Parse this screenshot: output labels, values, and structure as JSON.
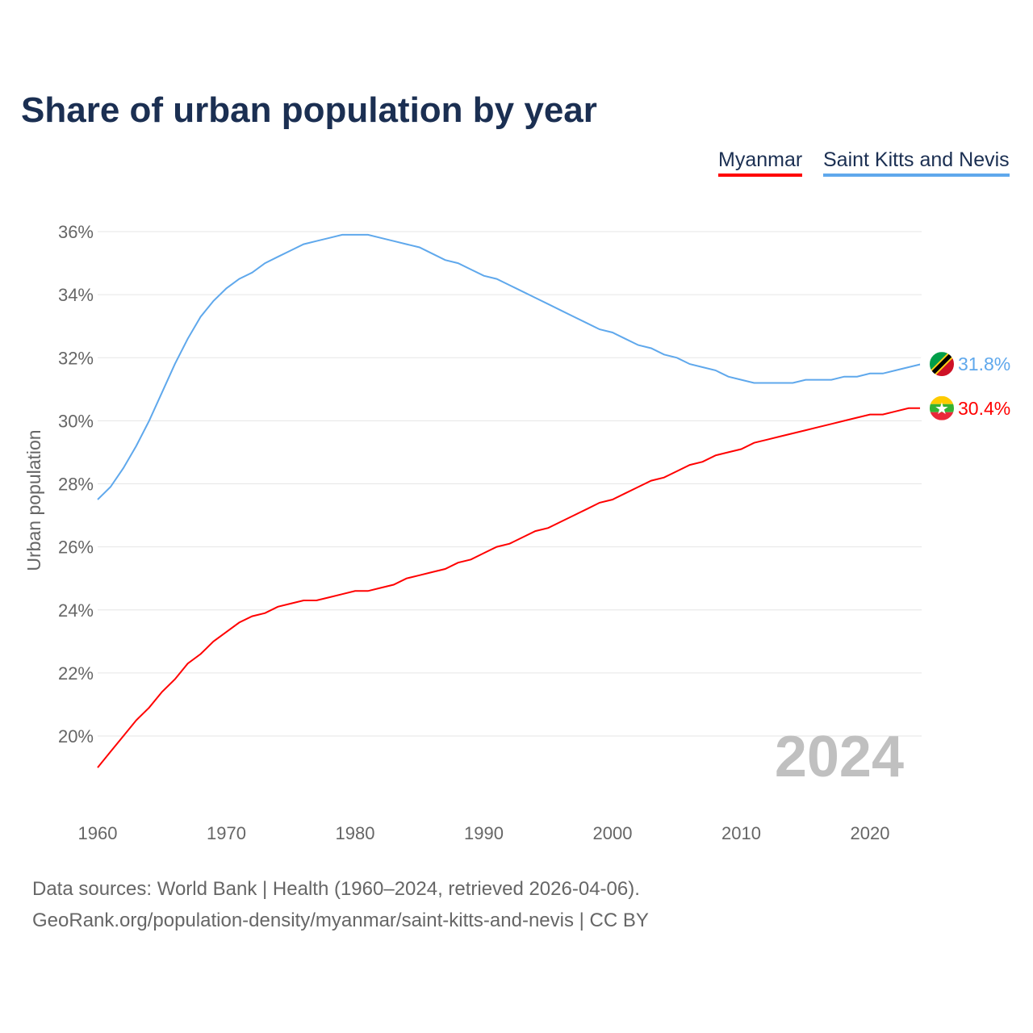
{
  "chart_data": {
    "type": "line",
    "title": "Share of urban population by year",
    "ylabel": "Urban population",
    "xlabel": "",
    "ylim": [
      18.2,
      36.5
    ],
    "xlim": [
      1960,
      2024
    ],
    "yticks": [
      20,
      22,
      24,
      26,
      28,
      30,
      32,
      34,
      36
    ],
    "ytick_labels": [
      "20%",
      "22%",
      "24%",
      "26%",
      "28%",
      "30%",
      "32%",
      "34%",
      "36%"
    ],
    "xticks": [
      1960,
      1970,
      1980,
      1990,
      2000,
      2010,
      2020
    ],
    "xtick_labels": [
      "1960",
      "1970",
      "1980",
      "1990",
      "2000",
      "2010",
      "2020"
    ],
    "grid": true,
    "legend_position": "top-right",
    "year_watermark": "2024",
    "x": [
      1960,
      1961,
      1962,
      1963,
      1964,
      1965,
      1966,
      1967,
      1968,
      1969,
      1970,
      1971,
      1972,
      1973,
      1974,
      1975,
      1976,
      1977,
      1978,
      1979,
      1980,
      1981,
      1982,
      1983,
      1984,
      1985,
      1986,
      1987,
      1988,
      1989,
      1990,
      1991,
      1992,
      1993,
      1994,
      1995,
      1996,
      1997,
      1998,
      1999,
      2000,
      2001,
      2002,
      2003,
      2004,
      2005,
      2006,
      2007,
      2008,
      2009,
      2010,
      2011,
      2012,
      2013,
      2014,
      2015,
      2016,
      2017,
      2018,
      2019,
      2020,
      2021,
      2022,
      2023,
      2024
    ],
    "series": [
      {
        "name": "Myanmar",
        "color": "#ff0000",
        "end_label": "30.4%",
        "values": [
          19.0,
          19.5,
          20.0,
          20.5,
          20.9,
          21.4,
          21.8,
          22.3,
          22.6,
          23.0,
          23.3,
          23.6,
          23.8,
          23.9,
          24.1,
          24.2,
          24.3,
          24.3,
          24.4,
          24.5,
          24.6,
          24.6,
          24.7,
          24.8,
          25.0,
          25.1,
          25.2,
          25.3,
          25.5,
          25.6,
          25.8,
          26.0,
          26.1,
          26.3,
          26.5,
          26.6,
          26.8,
          27.0,
          27.2,
          27.4,
          27.5,
          27.7,
          27.9,
          28.1,
          28.2,
          28.4,
          28.6,
          28.7,
          28.9,
          29.0,
          29.1,
          29.3,
          29.4,
          29.5,
          29.6,
          29.7,
          29.8,
          29.9,
          30.0,
          30.1,
          30.2,
          30.2,
          30.3,
          30.4,
          30.4
        ]
      },
      {
        "name": "Saint Kitts and Nevis",
        "color": "#5fa8ec",
        "end_label": "31.8%",
        "values": [
          27.5,
          27.9,
          28.5,
          29.2,
          30.0,
          30.9,
          31.8,
          32.6,
          33.3,
          33.8,
          34.2,
          34.5,
          34.7,
          35.0,
          35.2,
          35.4,
          35.6,
          35.7,
          35.8,
          35.9,
          35.9,
          35.9,
          35.8,
          35.7,
          35.6,
          35.5,
          35.3,
          35.1,
          35.0,
          34.8,
          34.6,
          34.5,
          34.3,
          34.1,
          33.9,
          33.7,
          33.5,
          33.3,
          33.1,
          32.9,
          32.8,
          32.6,
          32.4,
          32.3,
          32.1,
          32.0,
          31.8,
          31.7,
          31.6,
          31.4,
          31.3,
          31.2,
          31.2,
          31.2,
          31.2,
          31.3,
          31.3,
          31.3,
          31.4,
          31.4,
          31.5,
          31.5,
          31.6,
          31.7,
          31.8
        ]
      }
    ]
  },
  "footer": {
    "line1": "Data sources: World Bank | Health (1960–2024, retrieved 2026-04-06).",
    "line2": "GeoRank.org/population-density/myanmar/saint-kitts-and-nevis | CC BY"
  }
}
